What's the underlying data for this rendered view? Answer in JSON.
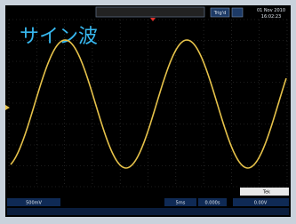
{
  "screen": {
    "title": "サイン波",
    "status": "Trig'd",
    "date": "01 Nov 2010",
    "time": "16:02:23"
  },
  "footer": {
    "channel": "500mV",
    "timebase": "5ms",
    "position": "0.000s",
    "trigger": "0.00V",
    "badge": "Tek"
  }
}
